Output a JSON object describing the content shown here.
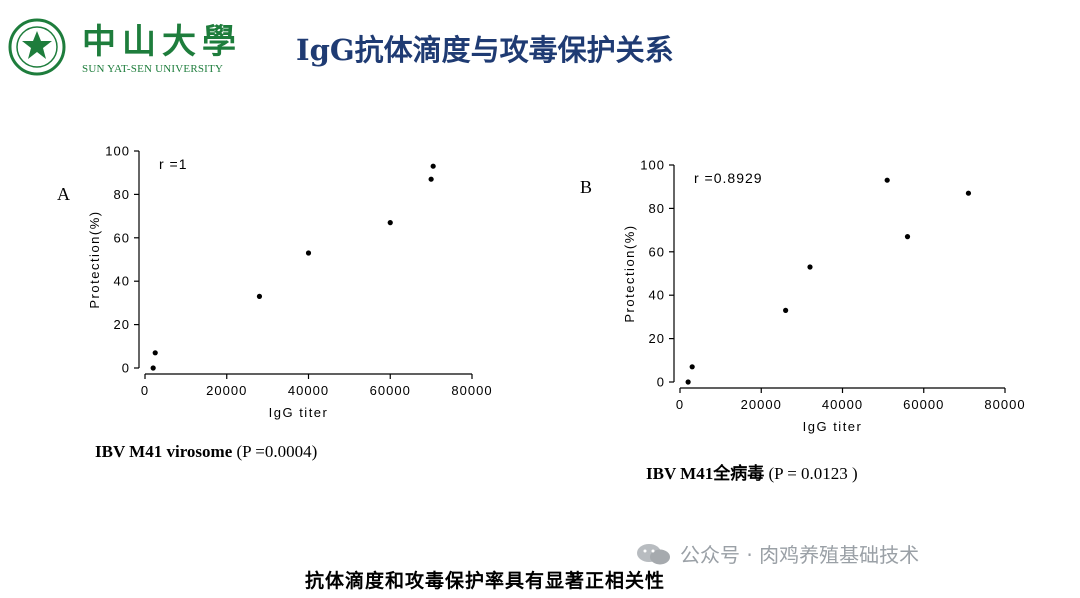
{
  "header": {
    "logo_cn": "中山大學",
    "logo_en": "SUN YAT-SEN UNIVERSITY",
    "title": "IgG抗体滴度与攻毒保护关系",
    "brand_color": "#1e7d3c",
    "title_color": "#1f3b73"
  },
  "panels": [
    {
      "letter": "A",
      "caption_main": "IBV M41 virosome",
      "caption_p": "(P =0.0004)"
    },
    {
      "letter": "B",
      "caption_main": "IBV M41全病毒",
      "caption_p": "(P = 0.0123 )"
    }
  ],
  "chart_data": [
    {
      "type": "scatter",
      "title": "",
      "xlabel": "IgG titer",
      "ylabel": "Protection(%)",
      "annotation": "r =1",
      "xlim": [
        0,
        80000
      ],
      "ylim": [
        0,
        100
      ],
      "xticks": [
        0,
        20000,
        40000,
        60000,
        80000
      ],
      "yticks": [
        0,
        20,
        40,
        60,
        80,
        100
      ],
      "grid": false,
      "points": [
        [
          2000,
          0
        ],
        [
          2500,
          7
        ],
        [
          28000,
          33
        ],
        [
          40000,
          53
        ],
        [
          60000,
          67
        ],
        [
          70000,
          87
        ],
        [
          70500,
          93
        ]
      ]
    },
    {
      "type": "scatter",
      "title": "",
      "xlabel": "IgG titer",
      "ylabel": "Protection(%)",
      "annotation": "r =0.8929",
      "xlim": [
        0,
        80000
      ],
      "ylim": [
        0,
        100
      ],
      "xticks": [
        0,
        20000,
        40000,
        60000,
        80000
      ],
      "yticks": [
        0,
        20,
        40,
        60,
        80,
        100
      ],
      "grid": false,
      "points": [
        [
          2000,
          0
        ],
        [
          3000,
          7
        ],
        [
          26000,
          33
        ],
        [
          32000,
          53
        ],
        [
          51000,
          93
        ],
        [
          56000,
          67
        ],
        [
          71000,
          87
        ]
      ]
    }
  ],
  "watermark": {
    "text": "公众号 · 肉鸡养殖基础技术"
  },
  "conclusion": "抗体滴度和攻毒保护率具有显著正相关性"
}
